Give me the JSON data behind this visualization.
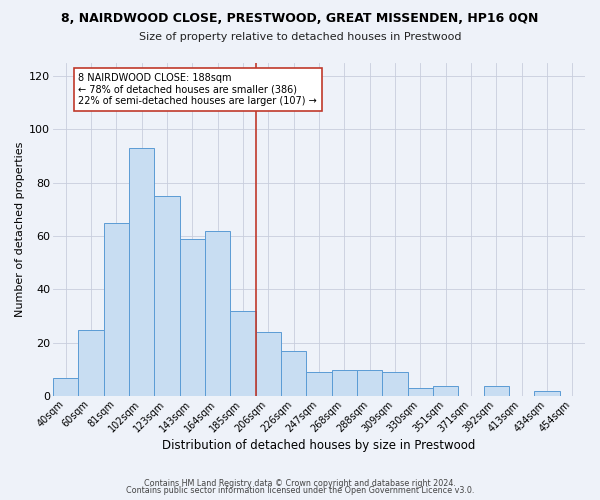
{
  "title": "8, NAIRDWOOD CLOSE, PRESTWOOD, GREAT MISSENDEN, HP16 0QN",
  "subtitle": "Size of property relative to detached houses in Prestwood",
  "xlabel": "Distribution of detached houses by size in Prestwood",
  "ylabel": "Number of detached properties",
  "bar_labels": [
    "40sqm",
    "60sqm",
    "81sqm",
    "102sqm",
    "123sqm",
    "143sqm",
    "164sqm",
    "185sqm",
    "206sqm",
    "226sqm",
    "247sqm",
    "268sqm",
    "288sqm",
    "309sqm",
    "330sqm",
    "351sqm",
    "371sqm",
    "392sqm",
    "413sqm",
    "434sqm",
    "454sqm"
  ],
  "bar_heights": [
    7,
    25,
    65,
    93,
    75,
    59,
    62,
    32,
    24,
    17,
    9,
    10,
    10,
    9,
    3,
    4,
    0,
    4,
    0,
    2,
    0
  ],
  "bar_color": "#c8ddf2",
  "bar_edge_color": "#5b9bd5",
  "vline_x_idx": 7,
  "vline_color": "#c0392b",
  "annotation_line1": "8 NAIRDWOOD CLOSE: 188sqm",
  "annotation_line2": "← 78% of detached houses are smaller (386)",
  "annotation_line3": "22% of semi-detached houses are larger (107) →",
  "annotation_box_color": "#ffffff",
  "annotation_box_edge": "#c0392b",
  "ylim": [
    0,
    125
  ],
  "yticks": [
    0,
    20,
    40,
    60,
    80,
    100,
    120
  ],
  "footer1": "Contains HM Land Registry data © Crown copyright and database right 2024.",
  "footer2": "Contains public sector information licensed under the Open Government Licence v3.0.",
  "bg_color": "#eef2f9",
  "plot_bg_color": "#eef2f9",
  "grid_color": "#c8cedd"
}
